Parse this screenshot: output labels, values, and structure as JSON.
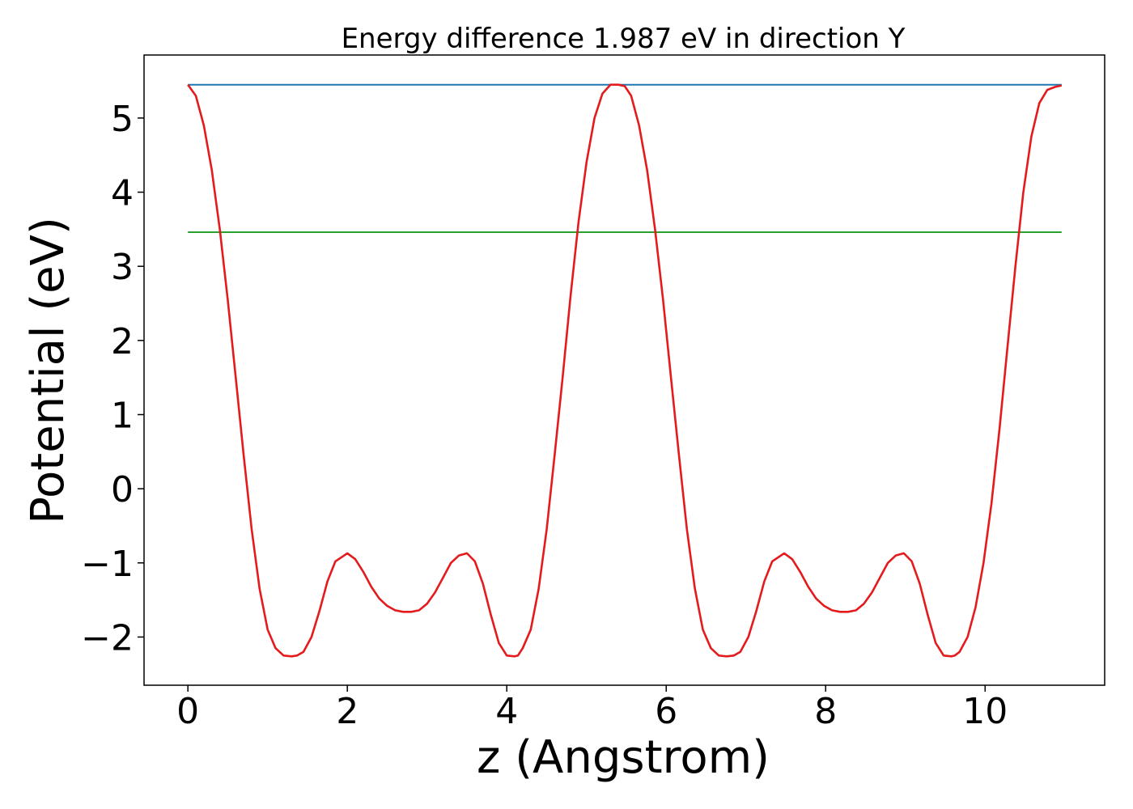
{
  "chart_data": {
    "type": "line",
    "title": "Energy difference 1.987 eV in direction Y",
    "xlabel": "z (Angstrom)",
    "ylabel": "Potential (eV)",
    "xlim": [
      -0.55,
      11.5
    ],
    "ylim": [
      -2.65,
      5.85
    ],
    "xticks": [
      0,
      2,
      4,
      6,
      8,
      10
    ],
    "yticks": [
      -2,
      -1,
      0,
      1,
      2,
      3,
      4,
      5
    ],
    "xtick_labels": [
      "0",
      "2",
      "4",
      "6",
      "8",
      "10"
    ],
    "ytick_labels": [
      "−2",
      "−1",
      "0",
      "1",
      "2",
      "3",
      "4",
      "5"
    ],
    "grid": false,
    "series": [
      {
        "color": "#1f77b4",
        "x": [
          0,
          10.96
        ],
        "y": [
          5.45,
          5.45
        ]
      },
      {
        "color": "#2ca02c",
        "x": [
          0,
          10.96
        ],
        "y": [
          3.46,
          3.46
        ]
      },
      {
        "color": "#e41a1c",
        "x": [
          0.0,
          0.1,
          0.2,
          0.3,
          0.4,
          0.5,
          0.6,
          0.7,
          0.8,
          0.9,
          1.0,
          1.1,
          1.2,
          1.3,
          1.37,
          1.45,
          1.55,
          1.65,
          1.75,
          1.85,
          2.0,
          2.1,
          2.2,
          2.3,
          2.4,
          2.5,
          2.6,
          2.7,
          2.8,
          2.9,
          3.0,
          3.1,
          3.2,
          3.3,
          3.4,
          3.5,
          3.6,
          3.7,
          3.8,
          3.9,
          4.0,
          4.1,
          4.14,
          4.2,
          4.3,
          4.4,
          4.5,
          4.6,
          4.7,
          4.8,
          4.9,
          5.0,
          5.1,
          5.2,
          5.3,
          5.4,
          5.48,
          5.56,
          5.66,
          5.76,
          5.86,
          5.96,
          6.06,
          6.16,
          6.26,
          6.36,
          6.46,
          6.56,
          6.66,
          6.76,
          6.85,
          6.93,
          7.03,
          7.13,
          7.23,
          7.33,
          7.48,
          7.58,
          7.68,
          7.78,
          7.88,
          7.98,
          8.08,
          8.18,
          8.28,
          8.38,
          8.48,
          8.58,
          8.68,
          8.78,
          8.88,
          8.98,
          9.08,
          9.18,
          9.28,
          9.38,
          9.48,
          9.58,
          9.62,
          9.68,
          9.78,
          9.88,
          9.98,
          10.08,
          10.18,
          10.28,
          10.38,
          10.48,
          10.58,
          10.68,
          10.78,
          10.88,
          10.96
        ],
        "y": [
          5.45,
          5.3,
          4.9,
          4.3,
          3.5,
          2.55,
          1.5,
          0.45,
          -0.55,
          -1.35,
          -1.9,
          -2.15,
          -2.25,
          -2.26,
          -2.25,
          -2.2,
          -2.0,
          -1.65,
          -1.25,
          -0.98,
          -0.87,
          -0.95,
          -1.12,
          -1.32,
          -1.48,
          -1.58,
          -1.64,
          -1.66,
          -1.66,
          -1.64,
          -1.55,
          -1.4,
          -1.2,
          -1.0,
          -0.9,
          -0.87,
          -0.98,
          -1.28,
          -1.7,
          -2.08,
          -2.25,
          -2.26,
          -2.25,
          -2.15,
          -1.9,
          -1.35,
          -0.55,
          0.45,
          1.5,
          2.6,
          3.6,
          4.4,
          5.0,
          5.33,
          5.45,
          5.45,
          5.43,
          5.3,
          4.9,
          4.3,
          3.5,
          2.55,
          1.5,
          0.45,
          -0.55,
          -1.35,
          -1.9,
          -2.15,
          -2.25,
          -2.26,
          -2.25,
          -2.2,
          -2.0,
          -1.65,
          -1.25,
          -0.98,
          -0.87,
          -0.95,
          -1.12,
          -1.32,
          -1.48,
          -1.58,
          -1.64,
          -1.66,
          -1.66,
          -1.64,
          -1.55,
          -1.4,
          -1.2,
          -1.0,
          -0.9,
          -0.87,
          -0.98,
          -1.28,
          -1.7,
          -2.08,
          -2.25,
          -2.26,
          -2.25,
          -2.2,
          -2.0,
          -1.6,
          -1.0,
          -0.2,
          0.8,
          1.9,
          3.0,
          4.0,
          4.75,
          5.2,
          5.38,
          5.42,
          5.44
        ]
      }
    ]
  }
}
